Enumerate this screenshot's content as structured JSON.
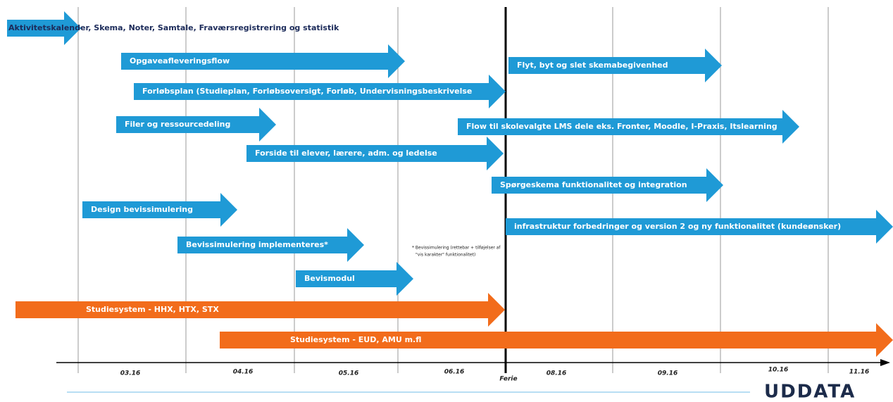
{
  "arrows": [
    {
      "label": "Aktivitetskalender, Skema, Noter, Samtale, Fraværsregistrering og statistik",
      "color": "#1f9ad6"
    },
    {
      "label": "Opgaveafleveringsflow",
      "color": "#1f9ad6"
    },
    {
      "label": "Flyt, byt og slet skemabegivenhed",
      "color": "#1f9ad6"
    },
    {
      "label": "Forløbsplan (Studieplan, Forløbsoversigt, Forløb, Undervisningsbeskrivelse",
      "color": "#1f9ad6"
    },
    {
      "label": "Filer og ressourcedeling",
      "color": "#1f9ad6"
    },
    {
      "label": "Flow til skolevalgte LMS dele eks. Fronter, Moodle, I-Praxis, Itslearning",
      "color": "#1f9ad6"
    },
    {
      "label": "Forside til elever, lærere, adm. og ledelse",
      "color": "#1f9ad6"
    },
    {
      "label": "Spørgeskema funktionalitet og integration",
      "color": "#1f9ad6"
    },
    {
      "label": "Design bevissimulering",
      "color": "#1f9ad6"
    },
    {
      "label": "infrastruktur forbedringer og version 2 og ny funktionalitet (kundeønsker)",
      "color": "#1f9ad6"
    },
    {
      "label": "Bevissimulering implementeres*",
      "color": "#1f9ad6"
    },
    {
      "label": "Bevismodul",
      "color": "#1f9ad6"
    },
    {
      "label": "Studiesystem - HHX, HTX, STX",
      "color": "#f26c1b"
    },
    {
      "label": "Studiesystem - EUD, AMU m.fl",
      "color": "#f26c1b"
    }
  ],
  "axis": {
    "labels": [
      "03.16",
      "04.16",
      "05.16",
      "06.16",
      "Ferie",
      "08.16",
      "09.16",
      "10.16",
      "11.16"
    ]
  },
  "footnote": [
    "* Bevissimulering (rettebar + tilføjelser af",
    "\"vis karakter\" funktionalitet)"
  ],
  "logo": "UDDATA"
}
